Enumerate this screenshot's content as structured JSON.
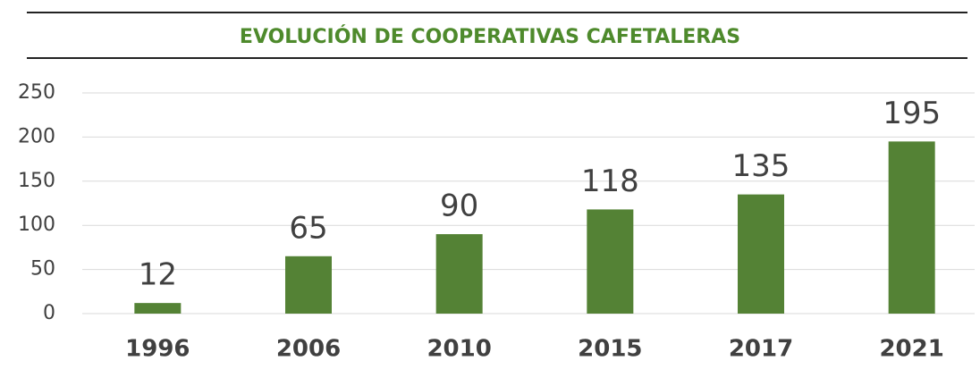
{
  "chart_data": {
    "type": "bar",
    "title": "EVOLUCIÓN DE COOPERATIVAS CAFETALERAS",
    "categories": [
      "1996",
      "2006",
      "2010",
      "2015",
      "2017",
      "2021"
    ],
    "values": [
      12,
      65,
      90,
      118,
      135,
      195
    ],
    "color": "#548235",
    "ylim": [
      0,
      250
    ],
    "yticks": [
      0,
      50,
      100,
      150,
      200,
      250
    ],
    "grid": true
  }
}
